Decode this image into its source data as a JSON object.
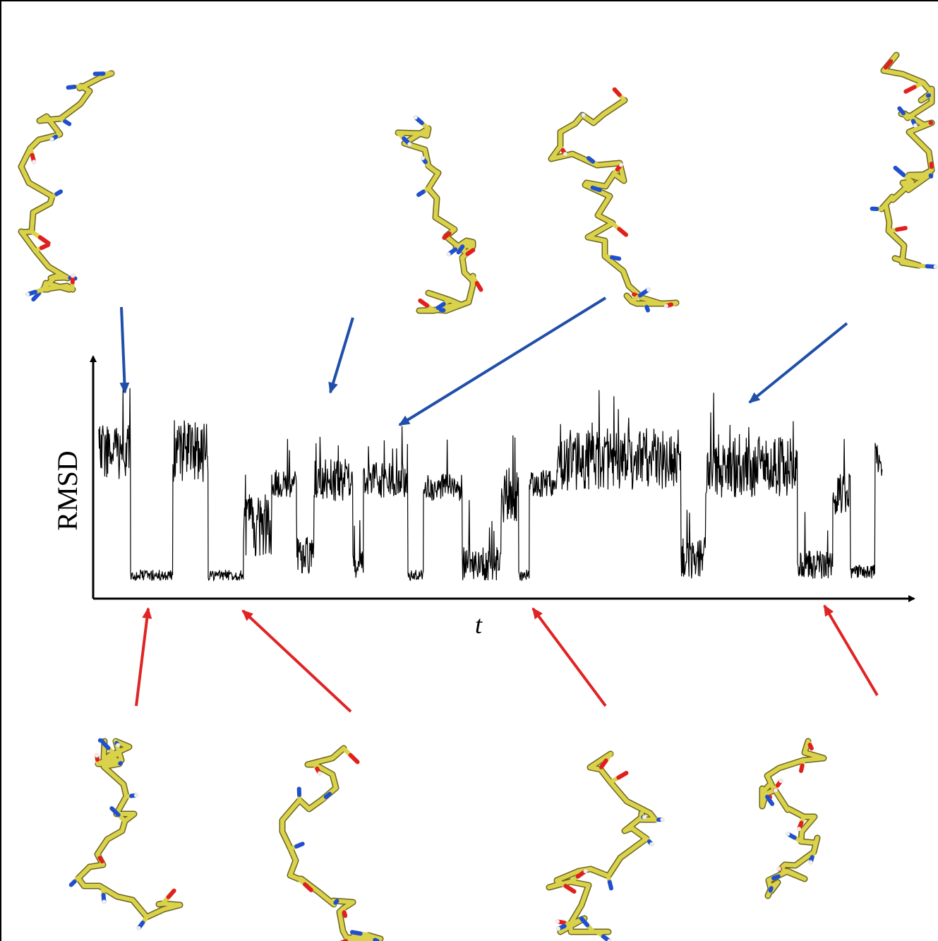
{
  "axes": {
    "y_label": "RMSD",
    "x_label": "t"
  }
}
